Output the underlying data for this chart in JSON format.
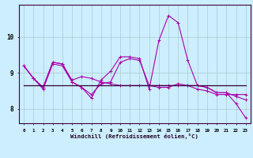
{
  "xlabel": "Windchill (Refroidissement éolien,°C)",
  "x_hours": [
    0,
    1,
    2,
    3,
    4,
    5,
    6,
    7,
    8,
    9,
    10,
    11,
    12,
    13,
    14,
    15,
    16,
    17,
    18,
    19,
    20,
    21,
    22,
    23
  ],
  "line_wavy": [
    9.2,
    8.85,
    8.6,
    9.3,
    9.25,
    8.8,
    8.9,
    8.85,
    8.75,
    8.7,
    8.65,
    8.65,
    8.65,
    8.65,
    8.65,
    8.65,
    8.65,
    8.65,
    8.65,
    8.6,
    8.45,
    8.45,
    8.35,
    8.25
  ],
  "line_spike": [
    9.2,
    8.85,
    8.6,
    9.3,
    9.25,
    8.75,
    8.6,
    8.3,
    8.8,
    9.05,
    9.45,
    9.45,
    9.4,
    8.55,
    9.9,
    10.6,
    10.4,
    9.35,
    8.65,
    8.6,
    8.45,
    8.45,
    8.15,
    7.75
  ],
  "line_descent": [
    9.2,
    8.85,
    8.55,
    9.25,
    9.2,
    8.75,
    8.6,
    8.4,
    8.7,
    8.75,
    9.3,
    9.4,
    9.35,
    8.65,
    8.6,
    8.6,
    8.7,
    8.65,
    8.55,
    8.5,
    8.4,
    8.4,
    8.4,
    8.4
  ],
  "line_flat": [
    8.65,
    8.65,
    8.65,
    8.65,
    8.65,
    8.65,
    8.65,
    8.65,
    8.65,
    8.65,
    8.65,
    8.65,
    8.65,
    8.65,
    8.65,
    8.65,
    8.65,
    8.65,
    8.65,
    8.65,
    8.65,
    8.65,
    8.65,
    8.65
  ],
  "bg_color": "#cceeff",
  "grid_color": "#aacccc",
  "line_color": "#aa00aa",
  "flat_color": "#330033",
  "linewidth": 0.8,
  "flat_linewidth": 0.9,
  "marker": "+",
  "markersize": 3,
  "ylim": [
    7.6,
    10.9
  ],
  "yticks": [
    8,
    9,
    10
  ],
  "figsize": [
    3.2,
    2.0
  ],
  "dpi": 100
}
